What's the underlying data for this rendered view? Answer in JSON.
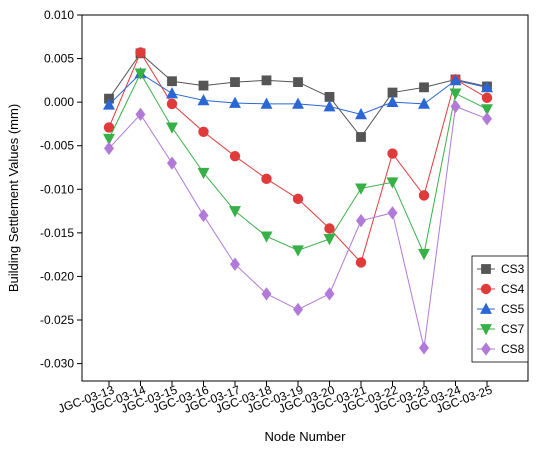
{
  "chart_data": {
    "type": "line",
    "xlabel": "Node Number",
    "ylabel": "Building Settlement Values (mm)",
    "categories": [
      "JGC-03-13",
      "JGC-03-14",
      "JGC-03-15",
      "JGC-03-16",
      "JGC-03-17",
      "JGC-03-18",
      "JGC-03-19",
      "JGC-03-20",
      "JGC-03-21",
      "JGC-03-22",
      "JGC-03-23",
      "JGC-03-24",
      "JGC-03-25"
    ],
    "ylim": [
      -0.032,
      0.01
    ],
    "yticks": [
      0.01,
      0.005,
      0.0,
      -0.005,
      -0.01,
      -0.015,
      -0.02,
      -0.025,
      -0.03
    ],
    "ytick_labels": [
      "0.010",
      "0.005",
      "0.000",
      "-0.005",
      "-0.010",
      "-0.015",
      "-0.020",
      "-0.025",
      "-0.030"
    ],
    "legend_position": "right",
    "series": [
      {
        "name": "CS3",
        "color": "#555555",
        "marker": "square",
        "values": [
          0.0004,
          0.0056,
          0.0024,
          0.0019,
          0.0023,
          0.0025,
          0.0023,
          0.0006,
          -0.004,
          0.0011,
          0.0017,
          0.0026,
          0.0018
        ]
      },
      {
        "name": "CS4",
        "color": "#e03a3a",
        "marker": "circle",
        "values": [
          -0.0029,
          0.0057,
          -0.0002,
          -0.0034,
          -0.0062,
          -0.0088,
          -0.0111,
          -0.0145,
          -0.0184,
          -0.0059,
          -0.0107,
          0.0026,
          0.0005
        ]
      },
      {
        "name": "CS5",
        "color": "#2a66d4",
        "marker": "triangle-up",
        "values": [
          -0.0003,
          0.0033,
          0.001,
          0.0002,
          -0.0001,
          -0.0002,
          -0.0002,
          -0.0005,
          -0.0014,
          0.0,
          -0.0002,
          0.0025,
          0.0017
        ]
      },
      {
        "name": "CS7",
        "color": "#38b048",
        "marker": "triangle-down",
        "values": [
          -0.0042,
          0.0033,
          -0.0029,
          -0.0081,
          -0.0125,
          -0.0154,
          -0.017,
          -0.0157,
          -0.0099,
          -0.0092,
          -0.0174,
          0.001,
          -0.0008
        ]
      },
      {
        "name": "CS8",
        "color": "#b27ad8",
        "marker": "diamond",
        "values": [
          -0.0053,
          -0.0014,
          -0.007,
          -0.013,
          -0.0186,
          -0.022,
          -0.0238,
          -0.022,
          -0.0136,
          -0.0127,
          -0.0282,
          -0.0005,
          -0.0019
        ]
      }
    ]
  }
}
